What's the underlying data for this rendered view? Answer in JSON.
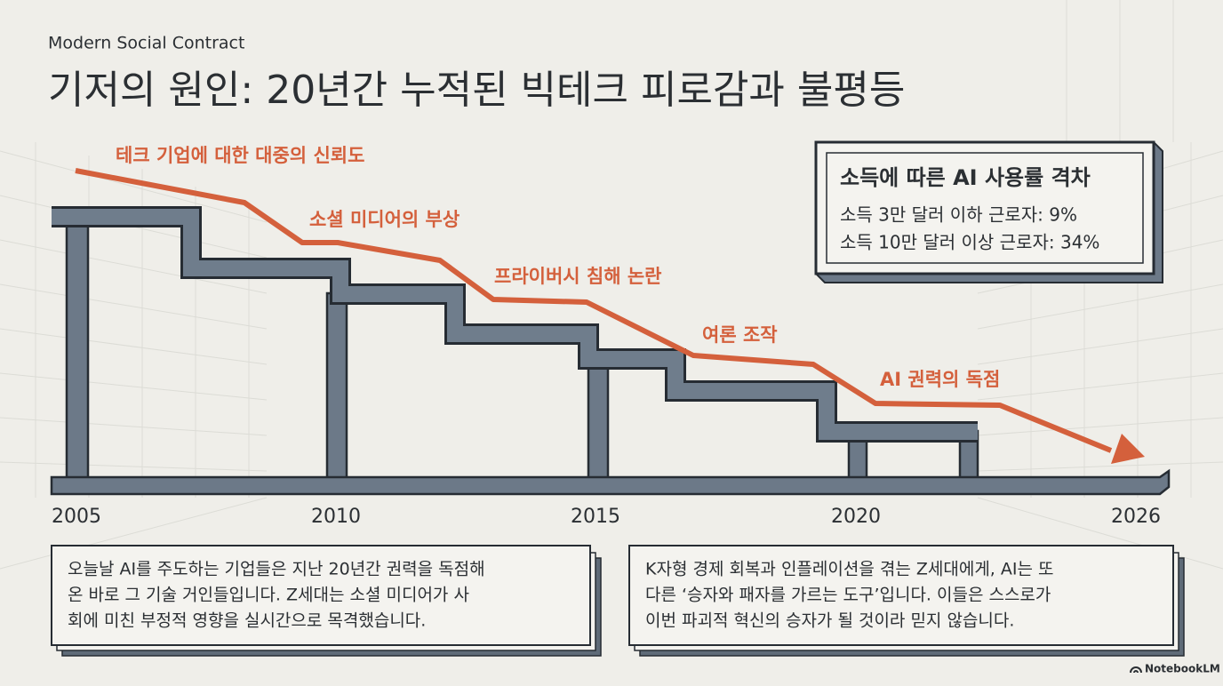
{
  "header": {
    "subtitle": "Modern Social Contract",
    "title": "기저의 원인: 20년간 누적된 빅테크 피로감과 불평등"
  },
  "trend": {
    "labels": [
      "테크 기업에 대한 대중의 신뢰도",
      "소셜 미디어의 부상",
      "프라이버시 침해 논란",
      "여론 조작",
      "AI 권력의 독점"
    ],
    "years": [
      "2005",
      "2010",
      "2015",
      "2020",
      "2026"
    ]
  },
  "callout": {
    "title": "소득에 따른 AI 사용률 격차",
    "lines": [
      "소득 3만 달러 이하 근로자: 9%",
      "소득 10만 달러 이상 근로자: 34%"
    ]
  },
  "notes": [
    {
      "lines": [
        "오늘날 AI를 주도하는 기업들은 지난 20년간 권력을 독점해",
        "온 바로 그 기술 거인들입니다. Z세대는 소셜 미디어가 사",
        "회에 미친 부정적 영향을 실시간으로 목격했습니다."
      ]
    },
    {
      "lines": [
        "K자형 경제 회복과 인플레이션을 겪는 Z세대에게, AI는 또",
        "다른 ‘승자와 패자를 가르는 도구’입니다. 이들은 스스로가",
        "이번 파괴적 혁신의 승자가 될 것이라 믿지 않습니다."
      ]
    }
  ],
  "brand": "NotebookLM"
}
